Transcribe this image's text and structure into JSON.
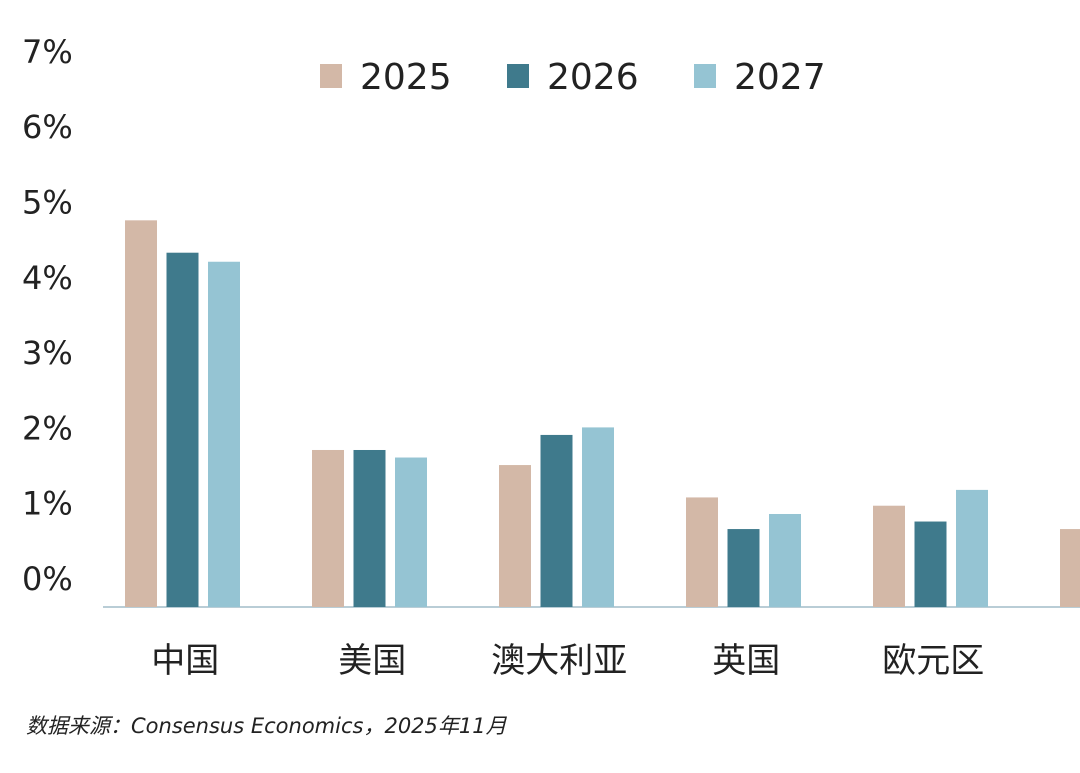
{
  "chart_data": {
    "type": "bar",
    "categories": [
      "中国",
      "美国",
      "澳大利亚",
      "英国",
      "欧元区",
      ""
    ],
    "series": [
      {
        "name": "2025",
        "color": "#d3b8a7",
        "values": [
          4.75,
          1.7,
          1.5,
          1.07,
          0.96,
          0.65
        ]
      },
      {
        "name": "2026",
        "color": "#3f7a8c",
        "values": [
          4.32,
          1.7,
          1.9,
          0.65,
          0.75,
          null
        ]
      },
      {
        "name": "2027",
        "color": "#95c4d3",
        "values": [
          4.2,
          1.6,
          2.0,
          0.85,
          1.17,
          null
        ]
      }
    ],
    "yticks": [
      "0%",
      "1%",
      "2%",
      "3%",
      "4%",
      "5%",
      "6%",
      "7%"
    ],
    "ylim": [
      0,
      7
    ],
    "legend_position": "top",
    "grid": false,
    "title": "",
    "xlabel": "",
    "ylabel": ""
  },
  "source": "数据来源：Consensus Economics，2025年11月"
}
